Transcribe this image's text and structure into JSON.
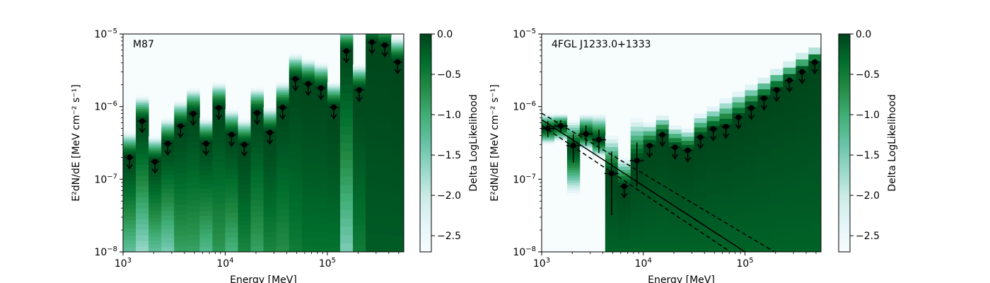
{
  "chart_data": [
    {
      "type": "heatmap",
      "title": "M87",
      "xlabel": "Energy [MeV]",
      "ylabel": "E²dN/dE [MeV cm⁻² s⁻¹]",
      "xscale": "log",
      "yscale": "log",
      "xlim": [
        1000,
        560000
      ],
      "ylim": [
        1e-08,
        1e-05
      ],
      "xticks": [
        {
          "value": 1000,
          "base": "10",
          "exp": "3"
        },
        {
          "value": 10000,
          "base": "10",
          "exp": "4"
        },
        {
          "value": 100000,
          "base": "10",
          "exp": "5"
        }
      ],
      "yticks": [
        {
          "value": 1e-08,
          "base": "10",
          "exp": "−8"
        },
        {
          "value": 1e-07,
          "base": "10",
          "exp": "−7"
        },
        {
          "value": 1e-06,
          "base": "10",
          "exp": "−6"
        },
        {
          "value": 1e-05,
          "base": "10",
          "exp": "−5"
        }
      ],
      "colorbar": {
        "label": "Delta LogLikelihood",
        "min": -2.7,
        "max": 0.0,
        "ticks": [
          "0.0",
          "−0.5",
          "−1.0",
          "−1.5",
          "−2.0",
          "−2.5"
        ],
        "tick_values": [
          0.0,
          -0.5,
          -1.0,
          -1.5,
          -2.0,
          -2.5
        ]
      },
      "colormap": [
        "#f7fcfd",
        "#e5f5f9",
        "#ccece6",
        "#99d8c9",
        "#66c2a4",
        "#41ae76",
        "#238b45",
        "#006d2c",
        "#00441b"
      ],
      "bin_edges": [
        1000,
        1334,
        1778,
        2371,
        3162,
        4217,
        5623,
        7499,
        10000,
        13335,
        17783,
        23714,
        31623,
        42170,
        56234,
        74989,
        100000,
        133352,
        177828,
        237137,
        316228,
        421697,
        562341
      ],
      "upper_limits": [
        2e-07,
        6.3e-07,
        1.75e-07,
        3.1e-07,
        5.4e-07,
        8e-07,
        3.1e-07,
        9.6e-07,
        4.1e-07,
        3e-07,
        8.2e-07,
        4.4e-07,
        9.7e-07,
        2.4e-06,
        2.05e-06,
        1.8e-06,
        9.8e-07,
        5.8e-06,
        1.7e-06,
        7.7e-06,
        7e-06,
        4.1e-06
      ],
      "bin_floor_level": [
        -1.3,
        -1.7,
        -1.3,
        -1.5,
        -0.9,
        -0.9,
        -1.2,
        -0.8,
        -1.1,
        -0.6,
        -0.9,
        -0.6,
        -0.7,
        -0.5,
        -0.4,
        -0.4,
        -0.4,
        -1.5,
        -0.5,
        -0.2,
        -0.2,
        -0.2
      ],
      "points": [],
      "model": []
    },
    {
      "type": "heatmap",
      "title": "4FGL J1233.0+1333",
      "xlabel": "Energy [MeV]",
      "ylabel": "E²dN/dE [MeV cm⁻² s⁻¹]",
      "xscale": "log",
      "yscale": "log",
      "xlim": [
        1000,
        560000
      ],
      "ylim": [
        1e-08,
        1e-05
      ],
      "xticks": [
        {
          "value": 1000,
          "base": "10",
          "exp": "3"
        },
        {
          "value": 10000,
          "base": "10",
          "exp": "4"
        },
        {
          "value": 100000,
          "base": "10",
          "exp": "5"
        }
      ],
      "yticks": [
        {
          "value": 1e-08,
          "base": "10",
          "exp": "−8"
        },
        {
          "value": 1e-07,
          "base": "10",
          "exp": "−7"
        },
        {
          "value": 1e-06,
          "base": "10",
          "exp": "−6"
        },
        {
          "value": 1e-05,
          "base": "10",
          "exp": "−5"
        }
      ],
      "colorbar": {
        "label": "Delta LogLikelihood",
        "min": -2.7,
        "max": 0.0,
        "ticks": [
          "0.0",
          "−0.5",
          "−1.0",
          "−1.5",
          "−2.0",
          "−2.5"
        ],
        "tick_values": [
          0.0,
          -0.5,
          -1.0,
          -1.5,
          -2.0,
          -2.5
        ]
      },
      "colormap": [
        "#f7fcfd",
        "#e5f5f9",
        "#ccece6",
        "#99d8c9",
        "#66c2a4",
        "#41ae76",
        "#238b45",
        "#006d2c",
        "#00441b"
      ],
      "bin_edges": [
        1000,
        1334,
        1778,
        2371,
        3162,
        4217,
        5623,
        7499,
        10000,
        13335,
        17783,
        23714,
        31623,
        42170,
        56234,
        74989,
        100000,
        133352,
        177828,
        237137,
        316228,
        421697,
        562341
      ],
      "band_low": [
        3e-07,
        3.3e-07,
        6e-08,
        2.5e-07,
        2e-07,
        1e-08,
        1e-08,
        1e-08,
        1e-08,
        1e-08,
        1e-08,
        1e-08,
        1e-08,
        1e-08,
        1e-08,
        1e-08,
        1e-08,
        1e-08,
        1e-08,
        1e-08,
        1e-08,
        1e-08
      ],
      "band_high": [
        8e-07,
        8e-07,
        6.5e-07,
        8e-07,
        8e-07,
        4e-07,
        2e-07,
        7e-07,
        6e-07,
        7.5e-07,
        5.5e-07,
        5e-07,
        8e-07,
        1e-06,
        1.3e-06,
        1.6e-06,
        2e-06,
        2.5e-06,
        3.3e-06,
        4.2e-06,
        5.5e-06,
        6.5e-06
      ],
      "upper_limits": [
        null,
        null,
        null,
        null,
        null,
        null,
        8e-08,
        null,
        2.9e-07,
        4.1e-07,
        2.75e-07,
        2.5e-07,
        3.8e-07,
        4.9e-07,
        5.3e-07,
        7.1e-07,
        9.6e-07,
        1.3e-06,
        1.7e-06,
        2.3e-06,
        3e-06,
        4.1e-06
      ],
      "points": [
        {
          "x": 1150,
          "y": 5e-07,
          "ylo": 3.8e-07,
          "yhi": 6.3e-07
        },
        {
          "x": 1540,
          "y": 5.4e-07,
          "ylo": 4.4e-07,
          "yhi": 6.5e-07
        },
        {
          "x": 2050,
          "y": 2.9e-07,
          "ylo": 1.7e-07,
          "yhi": 4.2e-07
        },
        {
          "x": 2730,
          "y": 4.2e-07,
          "ylo": 2.9e-07,
          "yhi": 5.5e-07
        },
        {
          "x": 3650,
          "y": 3.5e-07,
          "ylo": 2.3e-07,
          "yhi": 4.8e-07
        },
        {
          "x": 4870,
          "y": 1.2e-07,
          "ylo": 3.2e-08,
          "yhi": 2.4e-07
        },
        {
          "x": 8650,
          "y": 1.8e-07,
          "ylo": 8e-08,
          "yhi": 3.2e-07
        }
      ],
      "model": [
        {
          "name": "",
          "style": "solid",
          "points": [
            [
              1000,
              6.6e-07
            ],
            [
              100000,
              1e-08
            ]
          ]
        },
        {
          "name": "",
          "style": "dashed",
          "points": [
            [
              1000,
              8.1e-07
            ],
            [
              195000,
              1e-08
            ]
          ]
        },
        {
          "name": "",
          "style": "dashed",
          "points": [
            [
              1000,
              5.5e-07
            ],
            [
              72000,
              1e-08
            ]
          ]
        }
      ]
    }
  ]
}
